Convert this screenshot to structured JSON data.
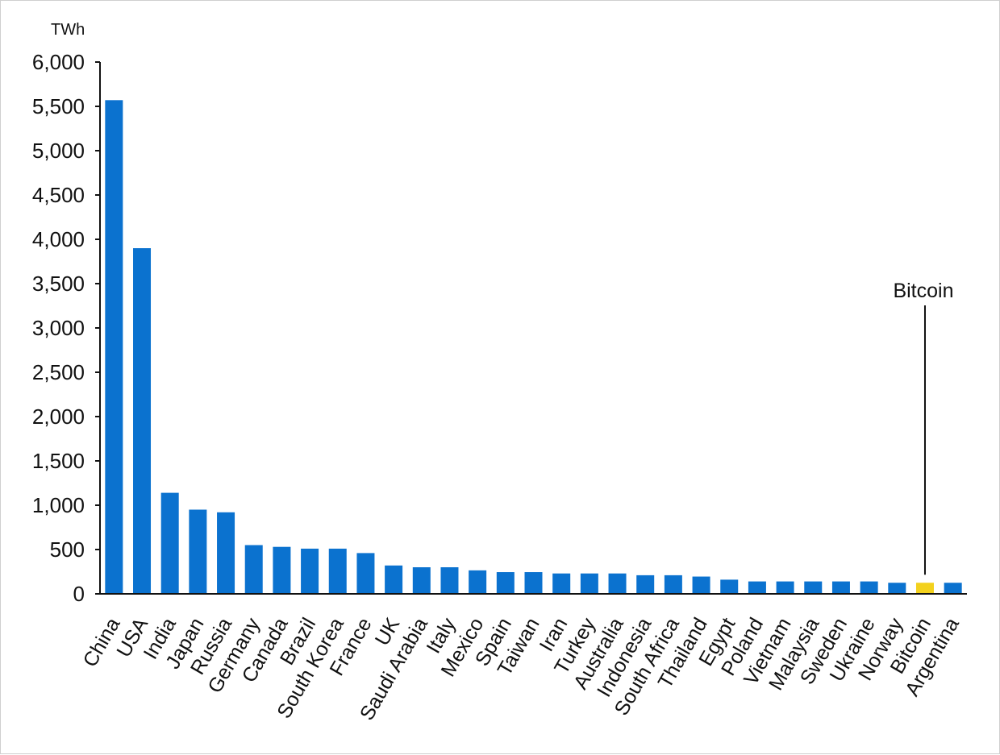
{
  "chart_data": {
    "type": "bar",
    "title": "",
    "xlabel": "",
    "ylabel": "TWh",
    "ylim": [
      0,
      6000
    ],
    "yticks": [
      0,
      500,
      1000,
      1500,
      2000,
      2500,
      3000,
      3500,
      4000,
      4500,
      5000,
      5500,
      6000
    ],
    "ytick_labels": [
      "0",
      "500",
      "1,000",
      "1,500",
      "2,000",
      "2,500",
      "3,000",
      "3,500",
      "4,000",
      "4,500",
      "5,000",
      "5,500",
      "6,000"
    ],
    "grid": false,
    "categories": [
      "China",
      "USA",
      "India",
      "Japan",
      "Russia",
      "Germany",
      "Canada",
      "Brazil",
      "South Korea",
      "France",
      "UK",
      "Saudi Arabia",
      "Italy",
      "Mexico",
      "Spain",
      "Taiwan",
      "Iran",
      "Turkey",
      "Australia",
      "Indonesia",
      "South Africa",
      "Thailand",
      "Egypt",
      "Poland",
      "Vietnam",
      "Malaysia",
      "Sweden",
      "Ukraine",
      "Norway",
      "Bitcoin",
      "Argentina"
    ],
    "values": [
      5570,
      3900,
      1140,
      950,
      920,
      550,
      530,
      510,
      510,
      460,
      320,
      300,
      300,
      265,
      245,
      245,
      230,
      230,
      230,
      210,
      210,
      195,
      160,
      140,
      140,
      140,
      140,
      140,
      125,
      125,
      125
    ],
    "colors": {
      "default": "#0b72cf",
      "highlight": "#f3d11d"
    },
    "highlight_category": "Bitcoin",
    "annotation": {
      "text": "Bitcoin",
      "target": "Bitcoin"
    }
  }
}
